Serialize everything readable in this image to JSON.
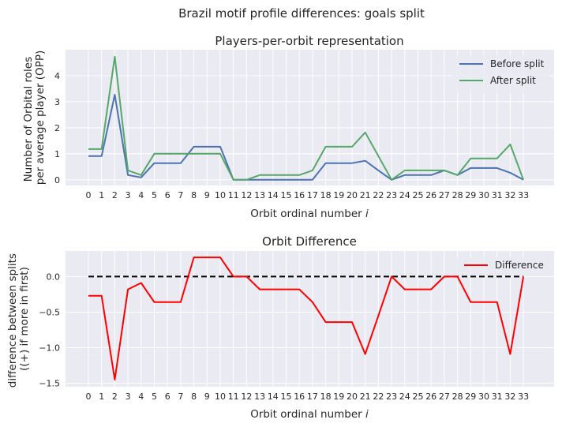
{
  "figure": {
    "suptitle": "Brazil motif profile differences: goals split"
  },
  "chart_data": [
    {
      "type": "line",
      "title": "Players-per-orbit representation",
      "xlabel": "Orbit ordinal number",
      "xlabel_var": "i",
      "ylabel_lines": [
        "Number of Orbital roles",
        "per average player (OPP)"
      ],
      "x": [
        0,
        1,
        2,
        3,
        4,
        5,
        6,
        7,
        8,
        9,
        10,
        11,
        12,
        13,
        14,
        15,
        16,
        17,
        18,
        19,
        20,
        21,
        22,
        23,
        24,
        25,
        26,
        27,
        28,
        29,
        30,
        31,
        32,
        33
      ],
      "xticks": [
        "0",
        "1",
        "2",
        "3",
        "4",
        "5",
        "6",
        "7",
        "8",
        "9",
        "10",
        "11",
        "12",
        "13",
        "14",
        "15",
        "16",
        "17",
        "18",
        "19",
        "20",
        "21",
        "22",
        "23",
        "24",
        "25",
        "26",
        "27",
        "28",
        "29",
        "30",
        "31",
        "32",
        "33"
      ],
      "ylim": [
        -0.22,
        5.0
      ],
      "yticks": [
        0,
        1,
        2,
        3,
        4
      ],
      "grid": true,
      "legend_position": "top-right",
      "series": [
        {
          "name": "Before split",
          "color": "#4c72b0",
          "values": [
            0.91,
            0.91,
            3.27,
            0.18,
            0.09,
            0.64,
            0.64,
            0.64,
            1.27,
            1.27,
            1.27,
            0,
            0,
            0,
            0,
            0,
            0,
            0,
            0.64,
            0.64,
            0.64,
            0.73,
            0.36,
            0,
            0.18,
            0.18,
            0.18,
            0.36,
            0.18,
            0.45,
            0.45,
            0.45,
            0.27,
            0
          ]
        },
        {
          "name": "After split",
          "color": "#55a868",
          "values": [
            1.18,
            1.18,
            4.73,
            0.36,
            0.18,
            1.0,
            1.0,
            1.0,
            1.0,
            1.0,
            1.0,
            0,
            0,
            0.18,
            0.18,
            0.18,
            0.18,
            0.36,
            1.27,
            1.27,
            1.27,
            1.82,
            0.91,
            0,
            0.36,
            0.36,
            0.36,
            0.36,
            0.18,
            0.82,
            0.82,
            0.82,
            1.36,
            0
          ]
        }
      ]
    },
    {
      "type": "line",
      "title": "Orbit Difference",
      "xlabel": "Orbit ordinal number",
      "xlabel_var": "i",
      "ylabel_lines": [
        "difference between splits",
        "((+) if more in first)"
      ],
      "x": [
        0,
        1,
        2,
        3,
        4,
        5,
        6,
        7,
        8,
        9,
        10,
        11,
        12,
        13,
        14,
        15,
        16,
        17,
        18,
        19,
        20,
        21,
        22,
        23,
        24,
        25,
        26,
        27,
        28,
        29,
        30,
        31,
        32,
        33
      ],
      "xticks": [
        "0",
        "1",
        "2",
        "3",
        "4",
        "5",
        "6",
        "7",
        "8",
        "9",
        "10",
        "11",
        "12",
        "13",
        "14",
        "15",
        "16",
        "17",
        "18",
        "19",
        "20",
        "21",
        "22",
        "23",
        "24",
        "25",
        "26",
        "27",
        "28",
        "29",
        "30",
        "31",
        "32",
        "33"
      ],
      "ylim": [
        -1.55,
        0.36
      ],
      "yticks": [
        0.0,
        -0.5,
        -1.0,
        -1.5
      ],
      "ytick_labels": [
        "0.0",
        "−0.5",
        "−1.0",
        "−1.5"
      ],
      "grid": true,
      "legend_position": "top-right",
      "zero_line": {
        "y": 0,
        "color": "#000000",
        "style": "dashed"
      },
      "series": [
        {
          "name": "Difference",
          "color": "#ff0000",
          "values": [
            -0.27,
            -0.27,
            -1.45,
            -0.18,
            -0.09,
            -0.36,
            -0.36,
            -0.36,
            0.27,
            0.27,
            0.27,
            0,
            0,
            -0.18,
            -0.18,
            -0.18,
            -0.18,
            -0.36,
            -0.64,
            -0.64,
            -0.64,
            -1.09,
            -0.55,
            0,
            -0.18,
            -0.18,
            -0.18,
            0,
            0,
            -0.36,
            -0.36,
            -0.36,
            -1.09,
            0
          ]
        }
      ]
    }
  ]
}
